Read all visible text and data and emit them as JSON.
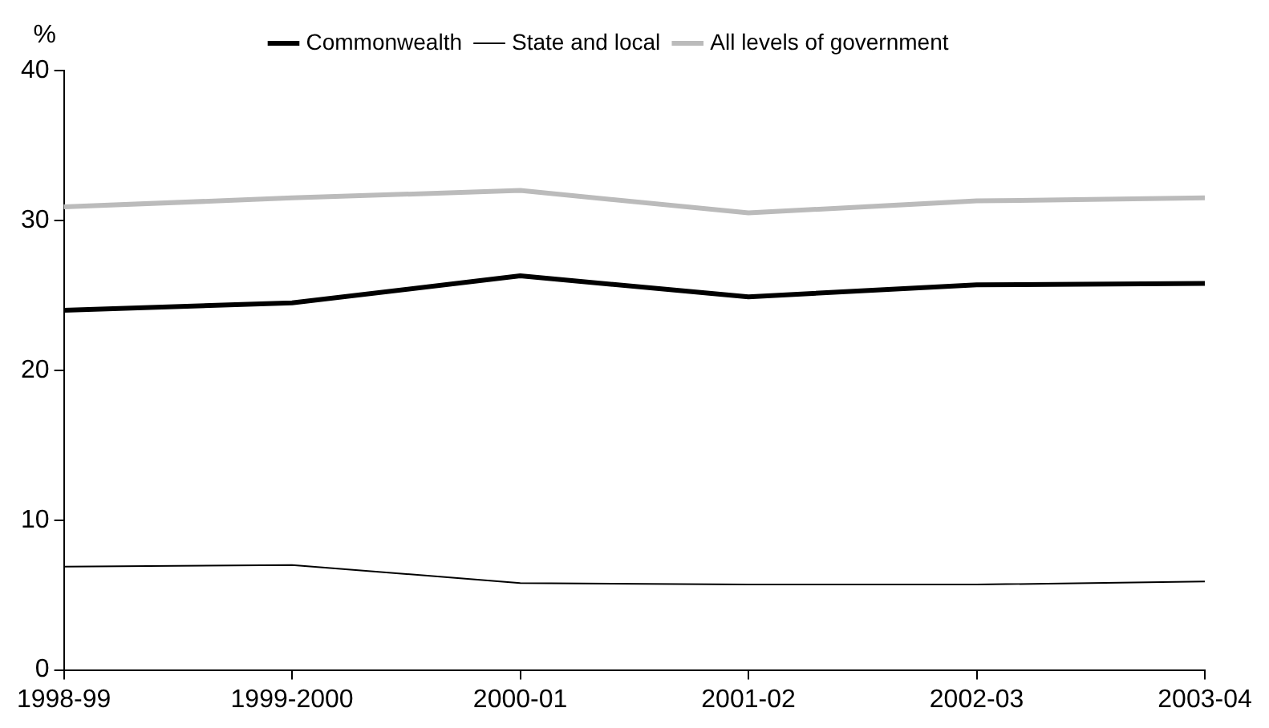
{
  "chart_data": {
    "type": "line",
    "ylabel": "%",
    "categories": [
      "1998-99",
      "1999-2000",
      "2000-01",
      "2001-02",
      "2002-03",
      "2003-04"
    ],
    "series": [
      {
        "name": "Commonwealth",
        "color": "#000000",
        "values": [
          24.0,
          24.5,
          26.3,
          24.9,
          25.7,
          25.8
        ]
      },
      {
        "name": "State and local",
        "color": "#000000",
        "values": [
          6.9,
          7.0,
          5.8,
          5.7,
          5.7,
          5.9
        ]
      },
      {
        "name": "All levels of government",
        "color": "#bbbbbb",
        "values": [
          30.9,
          31.5,
          32.0,
          30.5,
          31.3,
          31.5
        ]
      }
    ],
    "ylim": [
      0,
      40
    ],
    "yticks": [
      0,
      10,
      20,
      30,
      40
    ],
    "grid": false,
    "legend": "top",
    "marker": "none",
    "line_style": "solid"
  }
}
